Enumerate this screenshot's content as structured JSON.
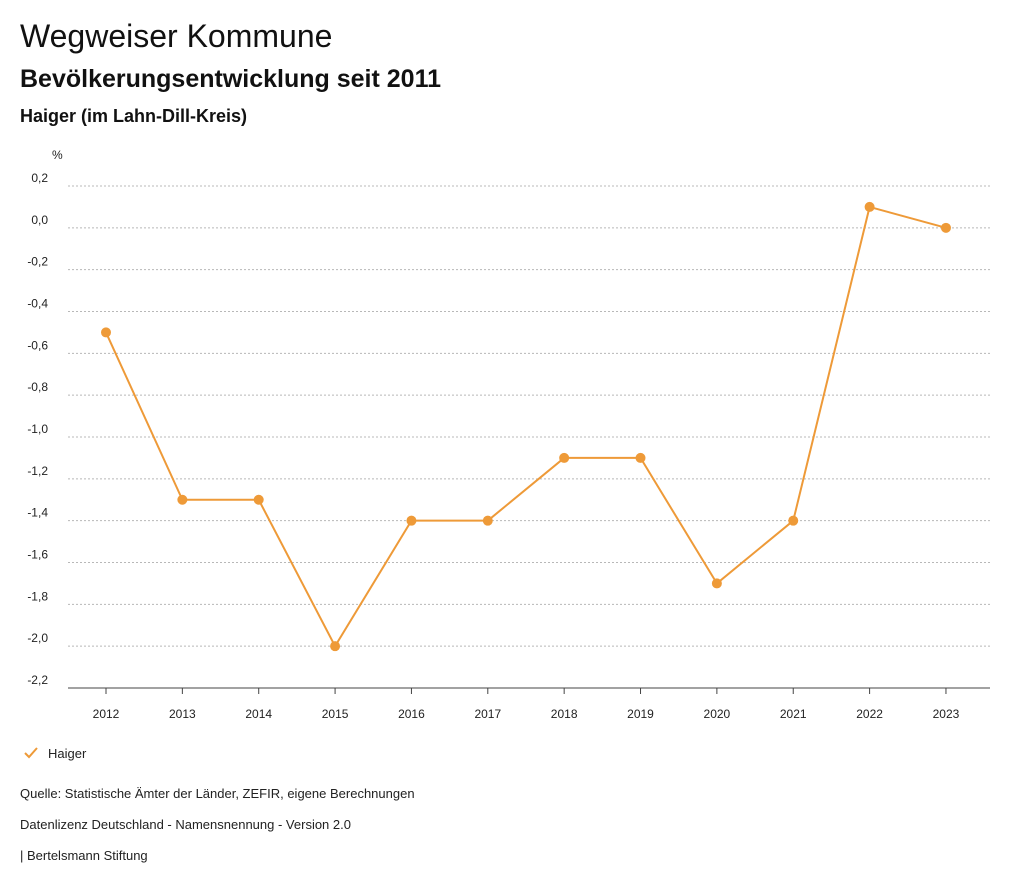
{
  "header": {
    "title": "Wegweiser Kommune",
    "subtitle": "Bevölkerungsentwicklung seit 2011",
    "region": "Haiger (im Lahn-Dill-Kreis)"
  },
  "chart_data": {
    "type": "line",
    "title": "Bevölkerungsentwicklung seit 2011",
    "xlabel": "",
    "ylabel": "%",
    "categories": [
      "2012",
      "2013",
      "2014",
      "2015",
      "2016",
      "2017",
      "2018",
      "2019",
      "2020",
      "2021",
      "2022",
      "2023"
    ],
    "series": [
      {
        "name": "Haiger",
        "color": "#ee9a38",
        "values": [
          -0.5,
          -1.3,
          -1.3,
          -2.0,
          -1.4,
          -1.4,
          -1.1,
          -1.1,
          -1.7,
          -1.4,
          0.1,
          0.0
        ]
      }
    ],
    "ylim": [
      -2.2,
      0.2
    ],
    "yticks": [
      0.2,
      0.0,
      -0.2,
      -0.4,
      -0.6,
      -0.8,
      -1.0,
      -1.2,
      -1.4,
      -1.6,
      -1.8,
      -2.0,
      -2.2
    ],
    "ytick_labels": [
      "0,2",
      "0,0",
      "-0,2",
      "-0,4",
      "-0,6",
      "-0,8",
      "-1,0",
      "-1,2",
      "-1,4",
      "-1,6",
      "-1,8",
      "-2,0",
      "-2,2"
    ],
    "grid": true,
    "legend": "bottom-left"
  },
  "legend": {
    "label": "Haiger"
  },
  "footer": {
    "source": "Quelle: Statistische Ämter der Länder, ZEFIR, eigene Berechnungen",
    "license": "Datenlizenz Deutschland - Namensnennung - Version 2.0",
    "publisher": "| Bertelsmann Stiftung"
  }
}
